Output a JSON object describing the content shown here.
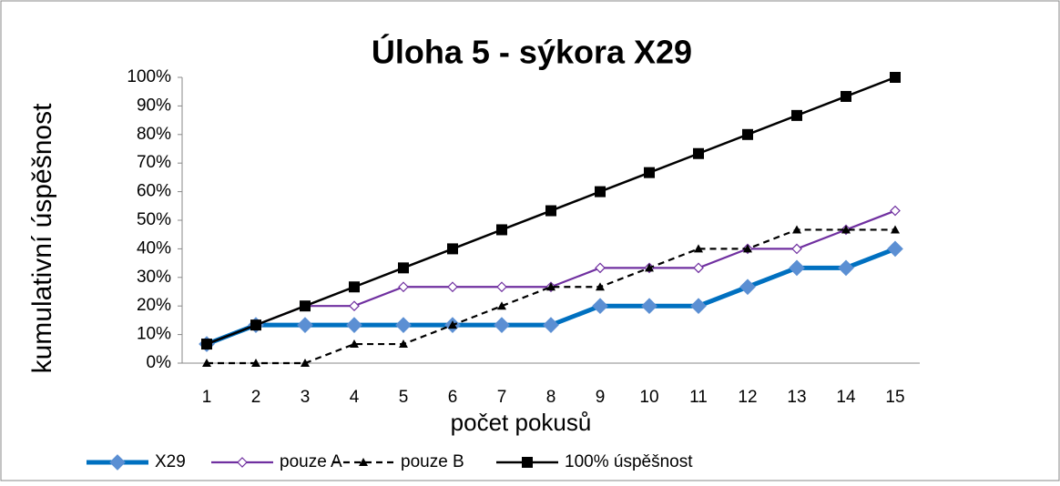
{
  "chart_data": {
    "type": "line",
    "title": "Úloha 5 - sýkora X29",
    "xlabel": "počet pokusů",
    "ylabel": "kumulativní úspěšnost",
    "categories": [
      "1",
      "2",
      "3",
      "4",
      "5",
      "6",
      "7",
      "8",
      "9",
      "10",
      "11",
      "12",
      "13",
      "14",
      "15"
    ],
    "ylim": [
      0,
      100
    ],
    "yticks": [
      {
        "value": 0,
        "label": "0%"
      },
      {
        "value": 10,
        "label": "10%"
      },
      {
        "value": 20,
        "label": "20%"
      },
      {
        "value": 30,
        "label": "30%"
      },
      {
        "value": 40,
        "label": "40%"
      },
      {
        "value": 50,
        "label": "50%"
      },
      {
        "value": 60,
        "label": "60%"
      },
      {
        "value": 70,
        "label": "70%"
      },
      {
        "value": 80,
        "label": "80%"
      },
      {
        "value": 90,
        "label": "90%"
      },
      {
        "value": 100,
        "label": "100%"
      }
    ],
    "legend": "bottom",
    "series": [
      {
        "name": "X29",
        "color": "#0070c0",
        "marker": "diamond",
        "values": [
          6.67,
          13.33,
          13.33,
          13.33,
          13.33,
          13.33,
          13.33,
          13.33,
          20,
          20,
          20,
          26.67,
          33.33,
          33.33,
          40
        ]
      },
      {
        "name": "pouze A",
        "color": "#7030a0",
        "marker": "diamond",
        "values": [
          6.67,
          13.33,
          20,
          20,
          26.67,
          26.67,
          26.67,
          26.67,
          33.33,
          33.33,
          33.33,
          40,
          40,
          46.67,
          53.33
        ]
      },
      {
        "name": "pouze B",
        "color": "#000000",
        "marker": "triangle",
        "dashed": true,
        "values": [
          0,
          0,
          0,
          6.67,
          6.67,
          13.33,
          20,
          26.67,
          26.67,
          33.33,
          40,
          40,
          46.67,
          46.67,
          46.67
        ]
      },
      {
        "name": "100% úspěšnost",
        "color": "#000000",
        "marker": "square",
        "values": [
          6.67,
          13.33,
          20,
          26.67,
          33.33,
          40,
          46.67,
          53.33,
          60,
          66.67,
          73.33,
          80,
          86.67,
          93.33,
          100
        ]
      }
    ]
  }
}
